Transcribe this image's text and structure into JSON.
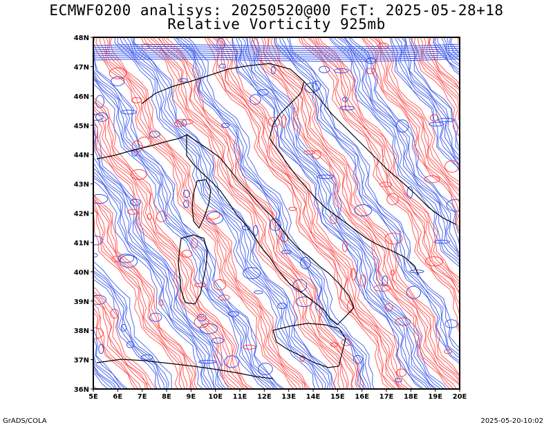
{
  "title_line1": "ECMWF0200 analisys: 20250520@00 FcT: 2025-05-28+18",
  "title_line2": "Relative Vorticity 925mb",
  "footer_left": "GrADS/COLA",
  "footer_right": "2025-05-20-10:02",
  "colors": {
    "positive": "#ff4040",
    "negative": "#3050e8",
    "coast": "#000000"
  },
  "lon_labels": [
    "5E",
    "6E",
    "7E",
    "8E",
    "9E",
    "10E",
    "11E",
    "12E",
    "13E",
    "14E",
    "15E",
    "16E",
    "17E",
    "18E",
    "19E",
    "20E"
  ],
  "lat_labels": [
    "36N",
    "37N",
    "38N",
    "39N",
    "40N",
    "41N",
    "42N",
    "43N",
    "44N",
    "45N",
    "46N",
    "47N",
    "48N"
  ]
}
